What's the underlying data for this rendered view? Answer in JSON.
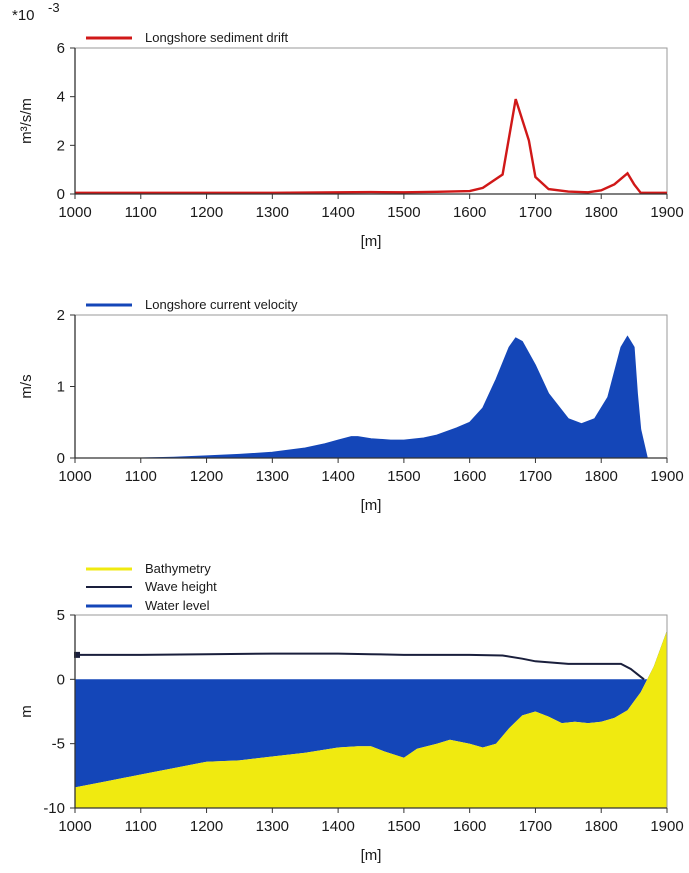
{
  "chart_data": [
    {
      "type": "line",
      "xlabel": "[m]",
      "ylabel": "m³/s/m",
      "yscale_label": "*10",
      "yscale_exponent": "-3",
      "xlim": [
        1000,
        1900
      ],
      "ylim": [
        0,
        6
      ],
      "x_ticks": [
        "1000",
        "1100",
        "1200",
        "1300",
        "1400",
        "1500",
        "1600",
        "1700",
        "1800",
        "1900"
      ],
      "y_ticks": [
        "0",
        "2",
        "4",
        "6"
      ],
      "legend_position": "top-left",
      "series": [
        {
          "name": "Longshore sediment drift",
          "color": "#d01818",
          "x": [
            1000,
            1100,
            1200,
            1300,
            1400,
            1450,
            1500,
            1550,
            1600,
            1620,
            1650,
            1670,
            1690,
            1700,
            1720,
            1750,
            1780,
            1800,
            1820,
            1840,
            1850,
            1860,
            1900
          ],
          "y": [
            0.05,
            0.05,
            0.05,
            0.05,
            0.07,
            0.08,
            0.07,
            0.09,
            0.12,
            0.25,
            0.8,
            3.9,
            2.2,
            0.7,
            0.2,
            0.1,
            0.07,
            0.15,
            0.4,
            0.85,
            0.4,
            0.05,
            0.05
          ]
        }
      ]
    },
    {
      "type": "area",
      "xlabel": "[m]",
      "ylabel": "m/s",
      "xlim": [
        1000,
        1900
      ],
      "ylim": [
        0,
        2
      ],
      "x_ticks": [
        "1000",
        "1100",
        "1200",
        "1300",
        "1400",
        "1500",
        "1600",
        "1700",
        "1800",
        "1900"
      ],
      "y_ticks": [
        "0",
        "1",
        "2"
      ],
      "legend_position": "top-left",
      "series": [
        {
          "name": "Longshore current velocity",
          "color": "#1446b8",
          "x": [
            1000,
            1100,
            1150,
            1200,
            1250,
            1300,
            1350,
            1380,
            1400,
            1420,
            1430,
            1450,
            1480,
            1500,
            1530,
            1550,
            1580,
            1600,
            1620,
            1640,
            1660,
            1670,
            1680,
            1700,
            1720,
            1750,
            1770,
            1790,
            1810,
            1830,
            1840,
            1850,
            1855,
            1860,
            1870
          ],
          "y": [
            0,
            0,
            0.01,
            0.03,
            0.05,
            0.08,
            0.14,
            0.2,
            0.25,
            0.3,
            0.3,
            0.27,
            0.25,
            0.25,
            0.28,
            0.32,
            0.42,
            0.5,
            0.7,
            1.1,
            1.55,
            1.68,
            1.63,
            1.3,
            0.9,
            0.55,
            0.48,
            0.55,
            0.85,
            1.55,
            1.7,
            1.55,
            0.9,
            0.4,
            0
          ]
        }
      ]
    },
    {
      "type": "area",
      "xlabel": "[m]",
      "ylabel": "m",
      "xlim": [
        1000,
        1900
      ],
      "ylim": [
        -10,
        5
      ],
      "x_ticks": [
        "1000",
        "1100",
        "1200",
        "1300",
        "1400",
        "1500",
        "1600",
        "1700",
        "1800",
        "1900"
      ],
      "y_ticks": [
        "-10",
        "-5",
        "0",
        "5"
      ],
      "legend_position": "top-left",
      "series": [
        {
          "name": "Bathymetry",
          "color": "#f0ea10",
          "x": [
            1000,
            1050,
            1100,
            1150,
            1200,
            1250,
            1300,
            1350,
            1400,
            1430,
            1450,
            1470,
            1500,
            1520,
            1550,
            1570,
            1600,
            1620,
            1640,
            1660,
            1680,
            1700,
            1720,
            1740,
            1760,
            1780,
            1800,
            1820,
            1840,
            1860,
            1880,
            1900
          ],
          "y": [
            -8.4,
            -7.9,
            -7.4,
            -6.9,
            -6.4,
            -6.3,
            -6.0,
            -5.7,
            -5.3,
            -5.2,
            -5.2,
            -5.6,
            -6.1,
            -5.4,
            -5.0,
            -4.7,
            -5.0,
            -5.3,
            -5.0,
            -3.8,
            -2.8,
            -2.5,
            -2.9,
            -3.4,
            -3.3,
            -3.4,
            -3.3,
            -3.0,
            -2.4,
            -1.0,
            1.0,
            3.8
          ]
        },
        {
          "name": "Wave height",
          "color": "#1a1f3c",
          "x": [
            1000,
            1050,
            1100,
            1200,
            1300,
            1400,
            1450,
            1500,
            1600,
            1650,
            1680,
            1700,
            1750,
            1800,
            1830,
            1845,
            1860,
            1865
          ],
          "y": [
            1.9,
            1.9,
            1.9,
            1.95,
            2.0,
            2.0,
            1.95,
            1.9,
            1.9,
            1.85,
            1.6,
            1.4,
            1.2,
            1.2,
            1.2,
            0.8,
            0.2,
            0.0
          ]
        },
        {
          "name": "Water level",
          "color": "#1446b8",
          "x": [
            1000,
            1900
          ],
          "y": [
            0,
            0
          ]
        }
      ]
    }
  ]
}
